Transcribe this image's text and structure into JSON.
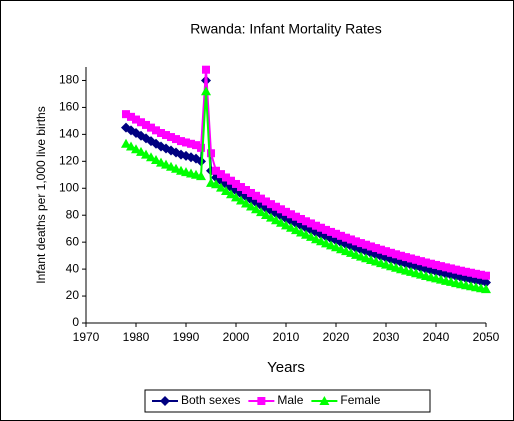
{
  "chart_data": {
    "type": "line",
    "title": "Rwanda:  Infant Mortality Rates",
    "x_label": "Years",
    "y_label": "Infant deaths per 1,000 live births",
    "xlim": [
      1970,
      2050
    ],
    "xticks": [
      1970,
      1980,
      1990,
      2000,
      2010,
      2020,
      2030,
      2040,
      2050
    ],
    "ylim": [
      0,
      190
    ],
    "yticks": [
      0,
      20,
      40,
      60,
      80,
      100,
      120,
      140,
      160,
      180
    ],
    "legend": "bottom",
    "x": [
      1978,
      1979,
      1980,
      1981,
      1982,
      1983,
      1984,
      1985,
      1986,
      1987,
      1988,
      1989,
      1990,
      1991,
      1992,
      1993,
      1994,
      1995,
      1996,
      1997,
      1998,
      1999,
      2000,
      2001,
      2002,
      2003,
      2004,
      2005,
      2006,
      2007,
      2008,
      2009,
      2010,
      2011,
      2012,
      2013,
      2014,
      2015,
      2016,
      2017,
      2018,
      2019,
      2020,
      2021,
      2022,
      2023,
      2024,
      2025,
      2026,
      2027,
      2028,
      2029,
      2030,
      2031,
      2032,
      2033,
      2034,
      2035,
      2036,
      2037,
      2038,
      2039,
      2040,
      2041,
      2042,
      2043,
      2044,
      2045,
      2046,
      2047,
      2048,
      2049,
      2050
    ],
    "series": [
      {
        "name": "Both sexes",
        "color": "#000080",
        "marker": "diamond",
        "values": [
          145,
          143,
          141,
          139,
          137,
          135,
          133,
          131,
          129.5,
          128,
          126.5,
          125,
          124,
          123,
          122,
          120,
          180,
          113,
          108,
          105.5,
          103,
          100.6,
          98.2,
          95.9,
          93.7,
          91.5,
          89.4,
          87.3,
          85.2,
          83.2,
          81.3,
          79.4,
          77.5,
          75.7,
          73.9,
          72.2,
          70.5,
          68.9,
          67.2,
          65.7,
          64.1,
          62.6,
          61.2,
          59.7,
          58.3,
          57,
          55.6,
          54.3,
          53.1,
          51.8,
          50.6,
          49.4,
          48.3,
          47.1,
          46,
          44.9,
          43.9,
          42.9,
          41.9,
          40.9,
          39.9,
          39,
          38.1,
          37.2,
          36.3,
          35.5,
          34.6,
          33.8,
          33,
          32.3,
          31.5,
          30.8,
          30.1
        ]
      },
      {
        "name": "Male",
        "color": "#ff00ff",
        "marker": "square",
        "values": [
          155,
          153,
          151,
          149,
          147,
          145,
          143,
          141,
          139.5,
          138,
          136.5,
          135,
          134,
          133,
          132,
          130,
          188,
          126,
          113,
          110.5,
          108,
          105.6,
          103.2,
          100.9,
          98.7,
          96.5,
          94.4,
          92.3,
          90.2,
          88.2,
          86.3,
          84.4,
          82.5,
          80.7,
          78.9,
          77.2,
          75.5,
          73.9,
          72.2,
          70.7,
          69.1,
          67.6,
          66.2,
          64.7,
          63.3,
          62,
          60.6,
          59.3,
          58.1,
          56.8,
          55.6,
          54.4,
          53.3,
          52.1,
          51,
          49.9,
          48.9,
          47.9,
          46.9,
          45.9,
          44.9,
          44,
          43.1,
          42.2,
          41.3,
          40.5,
          39.6,
          38.8,
          38,
          37.3,
          36.5,
          35.8,
          35.1
        ]
      },
      {
        "name": "Female",
        "color": "#00ff00",
        "marker": "triangle",
        "values": [
          133,
          131,
          129,
          127,
          125,
          123,
          121,
          119,
          117.5,
          116,
          114.5,
          113,
          112,
          111,
          110,
          109,
          172,
          104,
          103,
          100.5,
          98,
          95.6,
          93.2,
          90.9,
          88.7,
          86.5,
          84.4,
          82.3,
          80.2,
          78.2,
          76.3,
          74.4,
          72.5,
          70.7,
          68.9,
          67.2,
          65.5,
          63.9,
          62.2,
          60.7,
          59.1,
          57.6,
          56.2,
          54.7,
          53.3,
          52,
          50.6,
          49.3,
          48.1,
          46.8,
          45.6,
          44.4,
          43.3,
          42.1,
          41,
          39.9,
          38.9,
          37.9,
          36.9,
          35.9,
          34.9,
          34,
          33.1,
          32.2,
          31.3,
          30.5,
          29.6,
          28.8,
          28,
          27.3,
          26.5,
          25.8,
          25.1
        ]
      }
    ]
  }
}
